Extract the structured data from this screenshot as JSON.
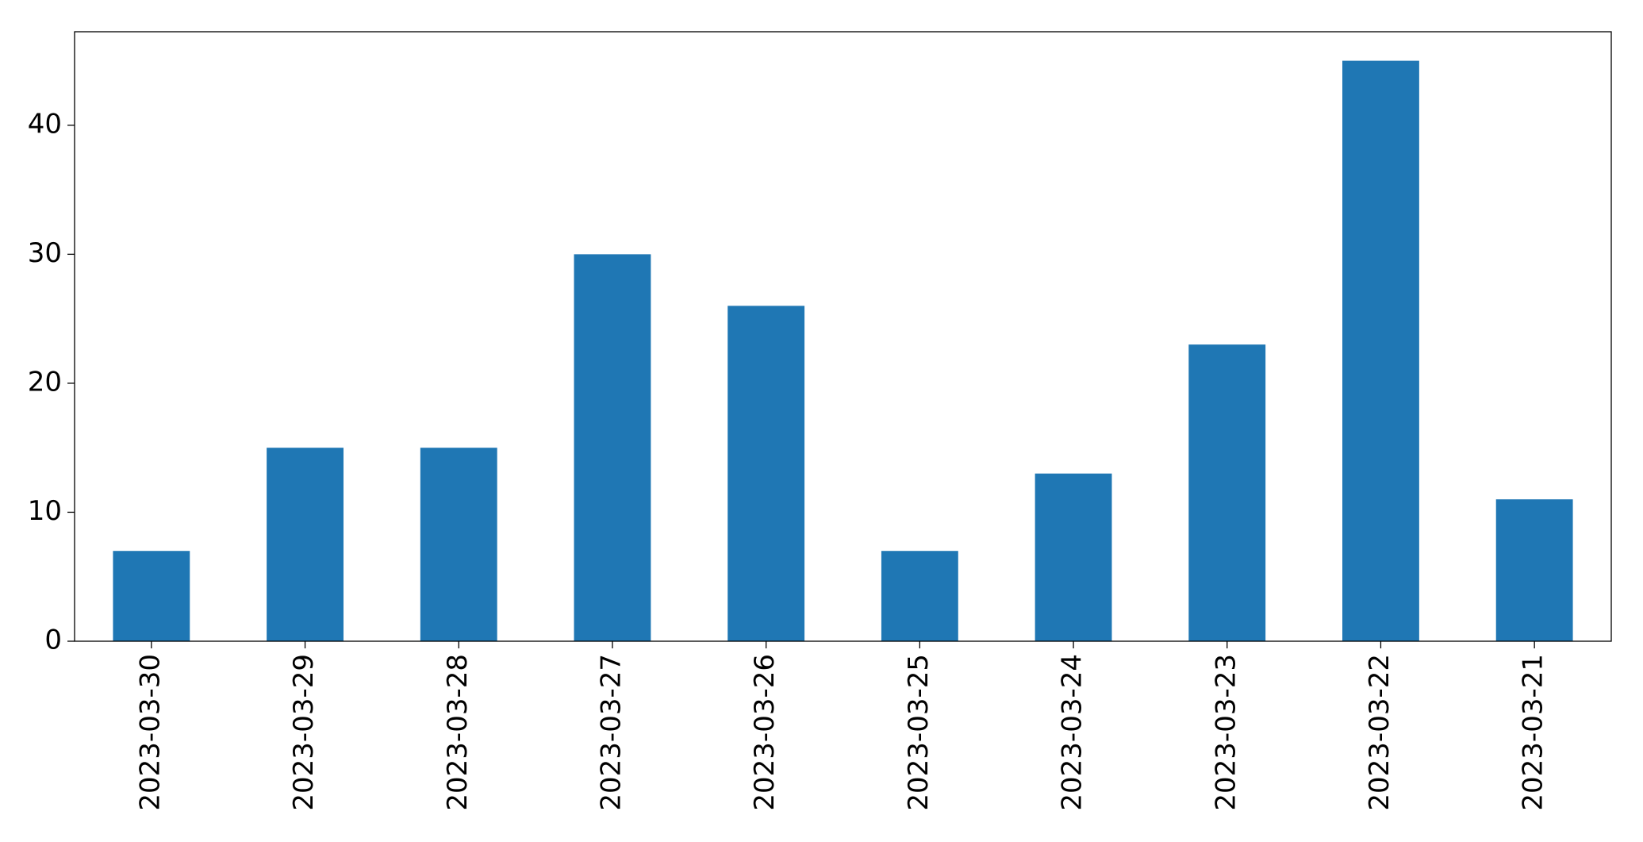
{
  "chart_data": {
    "type": "bar",
    "categories": [
      "2023-03-30",
      "2023-03-29",
      "2023-03-28",
      "2023-03-27",
      "2023-03-26",
      "2023-03-25",
      "2023-03-24",
      "2023-03-23",
      "2023-03-22",
      "2023-03-21"
    ],
    "values": [
      7,
      15,
      15,
      30,
      26,
      7,
      13,
      23,
      45,
      11
    ],
    "color": "#1f77b4",
    "ylim": [
      0,
      47.25
    ],
    "yticks": [
      0,
      10,
      20,
      30,
      40
    ],
    "grid": false
  }
}
